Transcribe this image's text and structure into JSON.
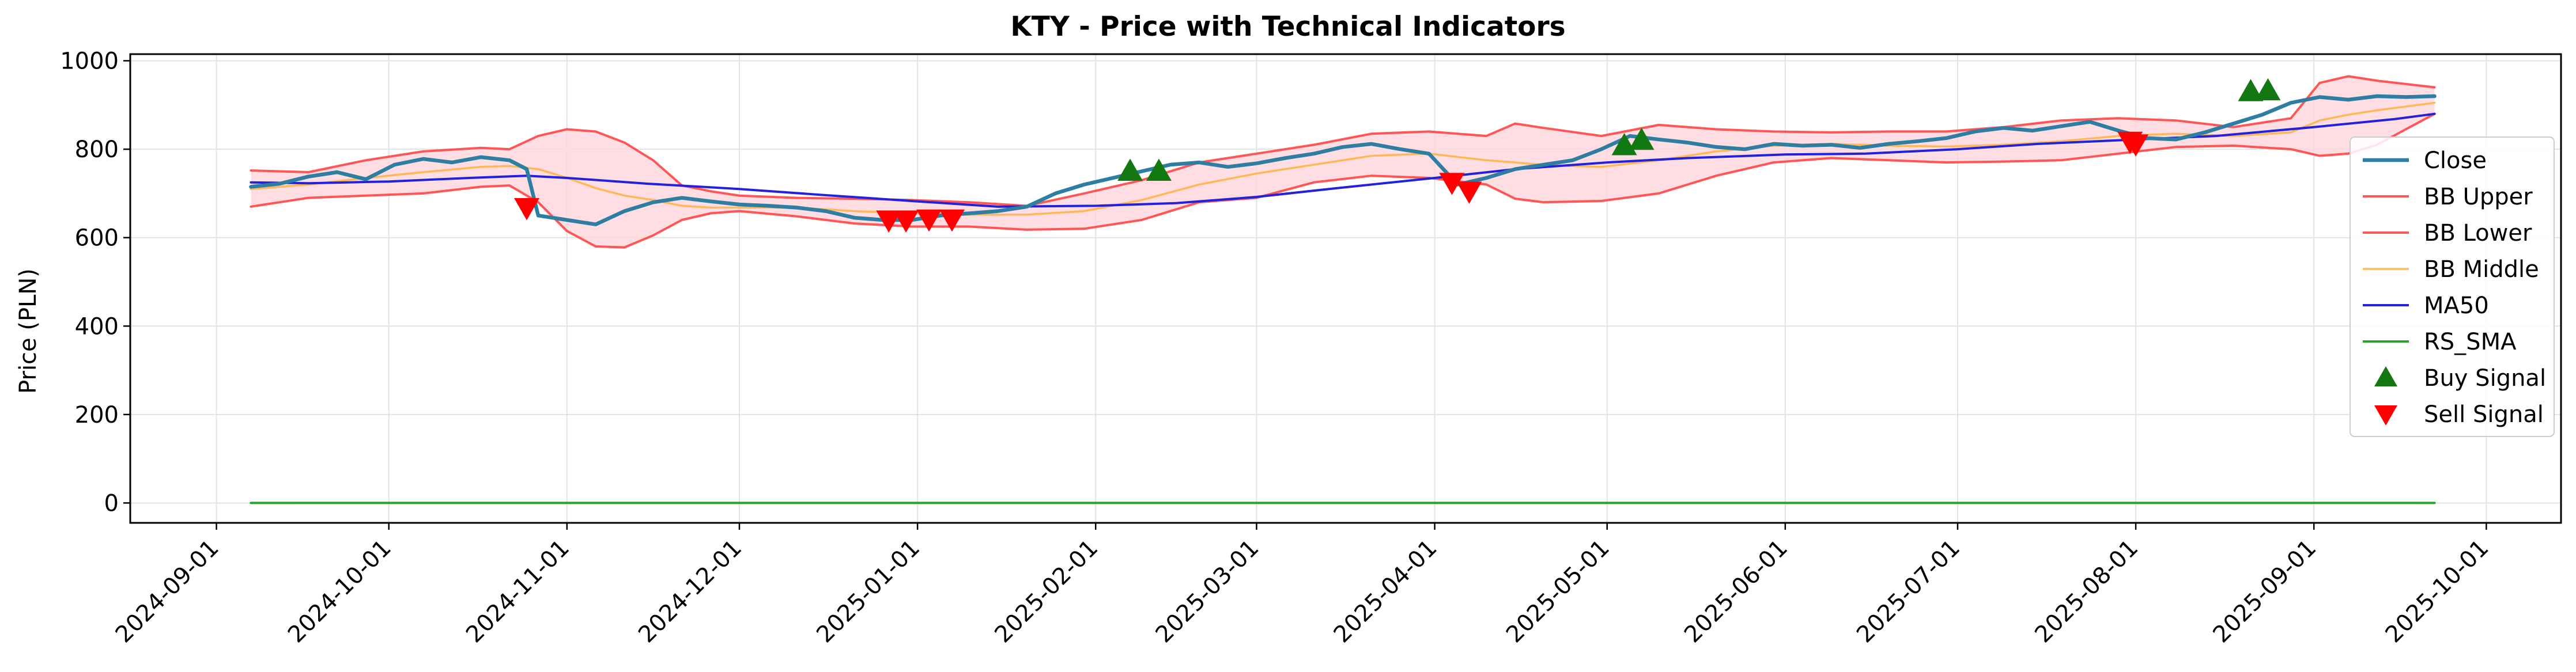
{
  "chart_data": {
    "type": "line",
    "title": "KTY - Price with Technical Indicators",
    "xlabel": "",
    "ylabel": "Price (PLN)",
    "ylim": [
      -45,
      1015
    ],
    "xlim": [
      "2024-08-17",
      "2025-10-14"
    ],
    "yticks": [
      0,
      200,
      400,
      600,
      800,
      1000
    ],
    "xticks": [
      "2024-09-01",
      "2024-10-01",
      "2024-11-01",
      "2024-12-01",
      "2025-01-01",
      "2025-02-01",
      "2025-03-01",
      "2025-04-01",
      "2025-05-01",
      "2025-06-01",
      "2025-07-01",
      "2025-08-01",
      "2025-09-01",
      "2025-10-01"
    ],
    "grid": true,
    "legend_position": "center-right",
    "colors": {
      "close": "#2e7ea3",
      "bb_upper": "#ff3b3b",
      "bb_lower": "#ff3b3b",
      "bb_middle": "#ffb347",
      "ma50": "#2222dd",
      "rs_sma": "#2ca02c",
      "band_fill": "#ffd6dc",
      "buy": "#127812",
      "sell": "#ff0000"
    },
    "series": [
      {
        "name": "Close",
        "key": "close",
        "x": [
          "2024-09-07",
          "2024-09-12",
          "2024-09-17",
          "2024-09-22",
          "2024-09-27",
          "2024-10-02",
          "2024-10-07",
          "2024-10-12",
          "2024-10-17",
          "2024-10-22",
          "2024-10-25",
          "2024-10-27",
          "2024-11-01",
          "2024-11-06",
          "2024-11-11",
          "2024-11-16",
          "2024-11-21",
          "2024-11-26",
          "2024-12-01",
          "2024-12-06",
          "2024-12-11",
          "2024-12-16",
          "2024-12-21",
          "2024-12-26",
          "2024-12-31",
          "2025-01-05",
          "2025-01-10",
          "2025-01-15",
          "2025-01-20",
          "2025-01-25",
          "2025-01-30",
          "2025-02-04",
          "2025-02-09",
          "2025-02-14",
          "2025-02-19",
          "2025-02-24",
          "2025-03-01",
          "2025-03-06",
          "2025-03-11",
          "2025-03-16",
          "2025-03-21",
          "2025-03-26",
          "2025-03-31",
          "2025-04-05",
          "2025-04-10",
          "2025-04-15",
          "2025-04-20",
          "2025-04-25",
          "2025-04-30",
          "2025-05-05",
          "2025-05-10",
          "2025-05-15",
          "2025-05-20",
          "2025-05-25",
          "2025-05-30",
          "2025-06-04",
          "2025-06-09",
          "2025-06-14",
          "2025-06-19",
          "2025-06-24",
          "2025-06-29",
          "2025-07-04",
          "2025-07-09",
          "2025-07-14",
          "2025-07-19",
          "2025-07-24",
          "2025-07-29",
          "2025-08-03",
          "2025-08-08",
          "2025-08-13",
          "2025-08-18",
          "2025-08-23",
          "2025-08-28",
          "2025-09-02",
          "2025-09-07",
          "2025-09-12",
          "2025-09-17",
          "2025-09-22"
        ],
        "values": [
          715,
          722,
          738,
          748,
          732,
          765,
          778,
          770,
          782,
          775,
          755,
          650,
          640,
          630,
          660,
          680,
          690,
          682,
          675,
          672,
          668,
          660,
          645,
          640,
          640,
          650,
          655,
          660,
          670,
          700,
          720,
          735,
          750,
          765,
          770,
          760,
          768,
          780,
          790,
          805,
          812,
          800,
          790,
          720,
          735,
          755,
          765,
          775,
          800,
          830,
          822,
          815,
          805,
          800,
          812,
          808,
          810,
          803,
          812,
          818,
          825,
          840,
          848,
          842,
          852,
          862,
          842,
          825,
          822,
          838,
          858,
          878,
          905,
          918,
          912,
          920,
          918,
          920
        ]
      },
      {
        "name": "BB Upper",
        "key": "bb_upper",
        "x": [
          "2024-09-07",
          "2024-09-17",
          "2024-09-27",
          "2024-10-07",
          "2024-10-17",
          "2024-10-22",
          "2024-10-27",
          "2024-11-01",
          "2024-11-06",
          "2024-11-11",
          "2024-11-16",
          "2024-11-21",
          "2024-11-26",
          "2024-12-01",
          "2024-12-11",
          "2024-12-21",
          "2024-12-31",
          "2025-01-10",
          "2025-01-20",
          "2025-01-30",
          "2025-02-09",
          "2025-02-19",
          "2025-03-01",
          "2025-03-11",
          "2025-03-21",
          "2025-03-31",
          "2025-04-10",
          "2025-04-15",
          "2025-04-20",
          "2025-04-30",
          "2025-05-10",
          "2025-05-20",
          "2025-05-30",
          "2025-06-09",
          "2025-06-19",
          "2025-06-29",
          "2025-07-09",
          "2025-07-19",
          "2025-07-29",
          "2025-08-08",
          "2025-08-18",
          "2025-08-28",
          "2025-09-02",
          "2025-09-07",
          "2025-09-12",
          "2025-09-22"
        ],
        "values": [
          752,
          748,
          775,
          795,
          803,
          800,
          830,
          845,
          840,
          815,
          775,
          718,
          705,
          695,
          690,
          688,
          685,
          680,
          672,
          700,
          730,
          770,
          790,
          810,
          835,
          840,
          830,
          858,
          848,
          830,
          855,
          845,
          840,
          838,
          840,
          840,
          850,
          865,
          870,
          865,
          850,
          870,
          950,
          965,
          955,
          940
        ]
      },
      {
        "name": "BB Lower",
        "key": "bb_lower",
        "x": [
          "2024-09-07",
          "2024-09-17",
          "2024-09-27",
          "2024-10-07",
          "2024-10-17",
          "2024-10-22",
          "2024-10-27",
          "2024-11-01",
          "2024-11-06",
          "2024-11-11",
          "2024-11-16",
          "2024-11-21",
          "2024-11-26",
          "2024-12-01",
          "2024-12-11",
          "2024-12-21",
          "2024-12-31",
          "2025-01-10",
          "2025-01-20",
          "2025-01-30",
          "2025-02-09",
          "2025-02-19",
          "2025-03-01",
          "2025-03-11",
          "2025-03-21",
          "2025-03-31",
          "2025-04-10",
          "2025-04-15",
          "2025-04-20",
          "2025-04-30",
          "2025-05-10",
          "2025-05-20",
          "2025-05-30",
          "2025-06-09",
          "2025-06-19",
          "2025-06-29",
          "2025-07-09",
          "2025-07-19",
          "2025-07-29",
          "2025-08-08",
          "2025-08-18",
          "2025-08-28",
          "2025-09-02",
          "2025-09-07",
          "2025-09-12",
          "2025-09-22"
        ],
        "values": [
          670,
          690,
          695,
          700,
          715,
          718,
          680,
          615,
          580,
          578,
          605,
          640,
          655,
          660,
          648,
          632,
          625,
          625,
          618,
          620,
          640,
          680,
          690,
          725,
          740,
          735,
          720,
          688,
          680,
          683,
          700,
          740,
          770,
          780,
          775,
          770,
          772,
          775,
          790,
          805,
          808,
          800,
          785,
          790,
          810,
          880
        ]
      },
      {
        "name": "BB Middle",
        "key": "bb_middle",
        "x": [
          "2024-09-07",
          "2024-09-17",
          "2024-09-27",
          "2024-10-07",
          "2024-10-17",
          "2024-10-22",
          "2024-10-27",
          "2024-11-01",
          "2024-11-06",
          "2024-11-11",
          "2024-11-16",
          "2024-11-21",
          "2024-11-26",
          "2024-12-01",
          "2024-12-11",
          "2024-12-21",
          "2024-12-31",
          "2025-01-10",
          "2025-01-20",
          "2025-01-30",
          "2025-02-09",
          "2025-02-19",
          "2025-03-01",
          "2025-03-11",
          "2025-03-21",
          "2025-03-31",
          "2025-04-10",
          "2025-04-15",
          "2025-04-20",
          "2025-04-30",
          "2025-05-10",
          "2025-05-20",
          "2025-05-30",
          "2025-06-09",
          "2025-06-19",
          "2025-06-29",
          "2025-07-09",
          "2025-07-19",
          "2025-07-29",
          "2025-08-08",
          "2025-08-18",
          "2025-08-28",
          "2025-09-02",
          "2025-09-07",
          "2025-09-12",
          "2025-09-22"
        ],
        "values": [
          710,
          720,
          735,
          748,
          760,
          762,
          755,
          735,
          712,
          695,
          685,
          672,
          668,
          668,
          668,
          660,
          655,
          652,
          652,
          660,
          685,
          720,
          745,
          765,
          785,
          790,
          775,
          770,
          764,
          760,
          775,
          795,
          808,
          812,
          808,
          806,
          810,
          818,
          830,
          835,
          830,
          838,
          865,
          878,
          888,
          905
        ]
      },
      {
        "name": "MA50",
        "key": "ma50",
        "x": [
          "2024-09-07",
          "2024-09-17",
          "2024-10-01",
          "2024-10-15",
          "2024-10-25",
          "2024-11-01",
          "2024-11-15",
          "2024-12-01",
          "2024-12-15",
          "2025-01-01",
          "2025-01-15",
          "2025-02-01",
          "2025-02-15",
          "2025-03-01",
          "2025-03-15",
          "2025-04-01",
          "2025-04-15",
          "2025-05-01",
          "2025-05-15",
          "2025-06-01",
          "2025-06-15",
          "2025-07-01",
          "2025-07-15",
          "2025-08-01",
          "2025-08-15",
          "2025-09-01",
          "2025-09-15",
          "2025-09-22"
        ],
        "values": [
          725,
          723,
          727,
          735,
          740,
          735,
          722,
          710,
          697,
          682,
          670,
          672,
          678,
          692,
          712,
          735,
          755,
          770,
          780,
          788,
          790,
          800,
          812,
          822,
          830,
          850,
          868,
          880
        ]
      },
      {
        "name": "RS_SMA",
        "key": "rs_sma",
        "x": [
          "2024-09-07",
          "2025-09-22"
        ],
        "values": [
          0,
          0
        ]
      }
    ],
    "markers": [
      {
        "name": "Buy Signal",
        "key": "buy",
        "shape": "triangle-up",
        "points": [
          {
            "x": "2025-02-07",
            "y": 750
          },
          {
            "x": "2025-02-12",
            "y": 750
          },
          {
            "x": "2025-05-04",
            "y": 808
          },
          {
            "x": "2025-05-07",
            "y": 820
          },
          {
            "x": "2025-08-21",
            "y": 930
          },
          {
            "x": "2025-08-24",
            "y": 932
          }
        ]
      },
      {
        "name": "Sell Signal",
        "key": "sell",
        "shape": "triangle-down",
        "points": [
          {
            "x": "2024-10-25",
            "y": 668
          },
          {
            "x": "2024-12-27",
            "y": 640
          },
          {
            "x": "2024-12-30",
            "y": 640
          },
          {
            "x": "2025-01-03",
            "y": 642
          },
          {
            "x": "2025-01-07",
            "y": 642
          },
          {
            "x": "2025-04-04",
            "y": 725
          },
          {
            "x": "2025-04-07",
            "y": 705
          },
          {
            "x": "2025-07-31",
            "y": 818
          },
          {
            "x": "2025-08-01",
            "y": 812
          }
        ]
      }
    ],
    "legend": [
      "Close",
      "BB Upper",
      "BB Lower",
      "BB Middle",
      "MA50",
      "RS_SMA",
      "Buy Signal",
      "Sell Signal"
    ]
  }
}
